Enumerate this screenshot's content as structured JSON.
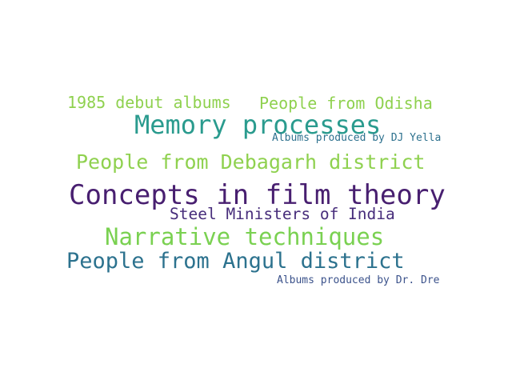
{
  "word_cloud": {
    "words": [
      {
        "text": "1985 debut albums",
        "color": "#8fd14f"
      },
      {
        "text": "People from Odisha",
        "color": "#8fd14f"
      },
      {
        "text": "Memory processes",
        "color": "#2a9b8e"
      },
      {
        "text": "Albums produced by DJ Yella",
        "color": "#2d718e"
      },
      {
        "text": "People from Debagarh district",
        "color": "#8fd14f"
      },
      {
        "text": "Concepts in film theory",
        "color": "#481f70"
      },
      {
        "text": "Steel Ministers of India",
        "color": "#472d7b"
      },
      {
        "text": "Narrative techniques",
        "color": "#7ad151"
      },
      {
        "text": "People from Angul district",
        "color": "#2c728e"
      },
      {
        "text": "Albums produced by Dr. Dre",
        "color": "#3b528b"
      }
    ]
  }
}
